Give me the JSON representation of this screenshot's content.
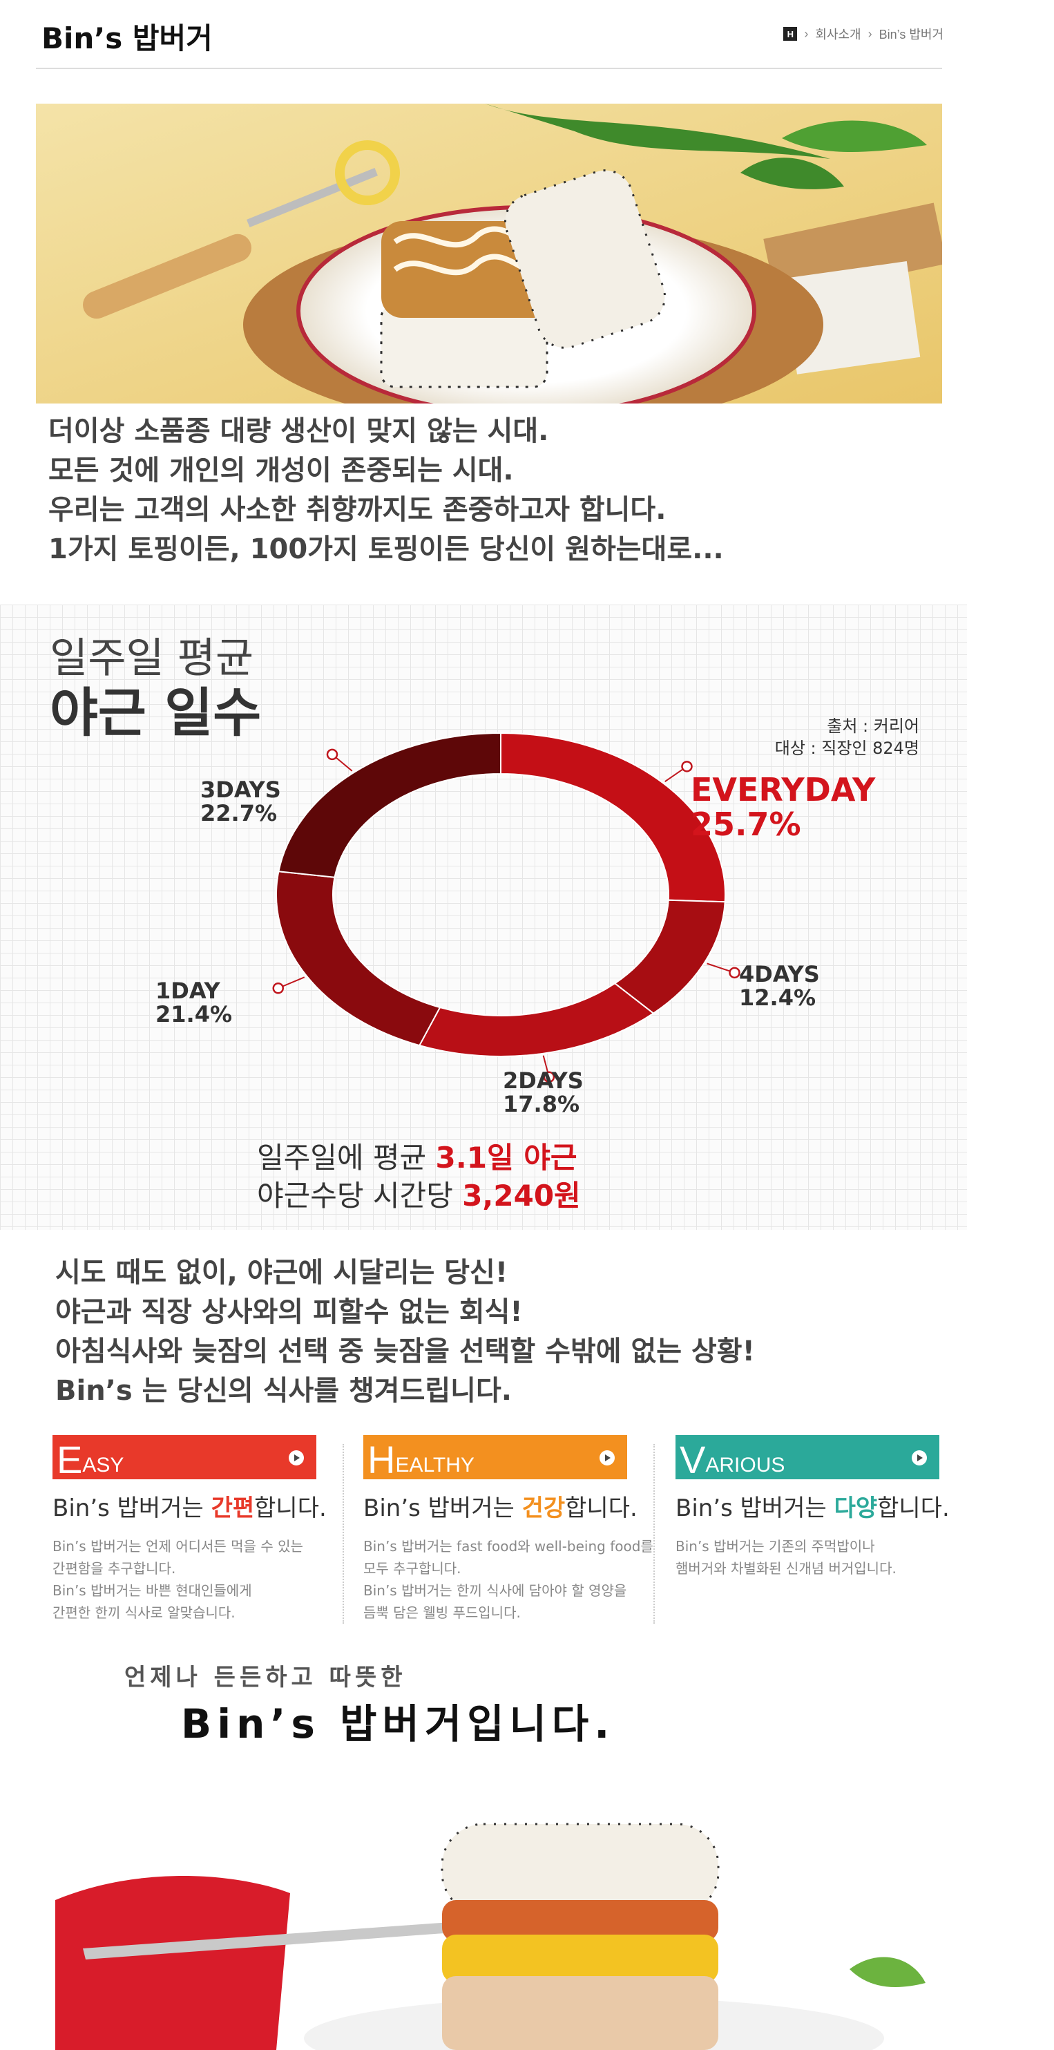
{
  "header": {
    "title": "Bin’s 밥버거",
    "breadcrumb": [
      "회사소개",
      "Bin’s 밥버거"
    ],
    "home_icon_label": "H"
  },
  "intro": {
    "lines": [
      "더이상 소품종 대량 생산이 맞지 않는 시대.",
      "모든 것에 개인의 개성이 존중되는 시대.",
      "우리는 고객의 사소한 취향까지도 존중하고자 합니다.",
      "1가지 토핑이든, 100가지 토핑이든 당신이 원하는대로..."
    ]
  },
  "infographic": {
    "title_line1": "일주일 평균",
    "title_line2": "야근 일수",
    "source_line1": "출처 : 커리어",
    "source_line2": "대상 : 직장인 824명",
    "summary_line1_prefix": "일주일에 평균 ",
    "summary_line1_highlight": "3.1일 야근",
    "summary_line2_prefix": "야근수당 시간당 ",
    "summary_line2_highlight": "3,240원"
  },
  "chart_data": {
    "type": "pie",
    "title": "일주일 평균 야근 일수",
    "categories": [
      "EVERYDAY",
      "4DAYS",
      "2DAYS",
      "1DAY",
      "3DAYS"
    ],
    "values": [
      25.7,
      12.4,
      17.8,
      21.4,
      22.7
    ],
    "value_labels": [
      "25.7%",
      "12.4%",
      "17.8%",
      "21.4%",
      "22.7%"
    ],
    "colors": [
      "#c40f16",
      "#a70d12",
      "#b80f16",
      "#8a0a0e",
      "#5e0708"
    ],
    "donut": true
  },
  "copy2": {
    "lines": [
      "시도 때도 없이, 야근에 시달리는 당신!",
      "야근과 직장 상사와의 피할수 없는 회식!",
      "아침식사와 늦잠의 선택 중 늦잠을 선택할 수밖에 없는 상황!",
      "Bin’s 는 당신의 식사를 챙겨드립니다."
    ]
  },
  "features": [
    {
      "first_letter": "E",
      "rest": "ASY",
      "color": "#e8392a",
      "head_prefix": "Bin’s 밥버거는 ",
      "head_highlight": "간편",
      "head_suffix": "합니다.",
      "highlight_color": "#e8392a",
      "desc": [
        "Bin’s 밥버거는 언제 어디서든 먹을 수 있는",
        "간편함을 추구합니다.",
        "Bin’s 밥버거는 바쁜 현대인들에게",
        "간편한 한끼 식사로 알맞습니다."
      ]
    },
    {
      "first_letter": "H",
      "rest": "EALTHY",
      "color": "#f3901f",
      "head_prefix": "Bin’s 밥버거는 ",
      "head_highlight": "건강",
      "head_suffix": "합니다.",
      "highlight_color": "#f3901f",
      "desc": [
        "Bin’s 밥버거는 fast food와 well-being food를",
        "모두 추구합니다.",
        "Bin’s 밥버거는 한끼 식사에 담아야 할 영양을",
        "듬뿍 담은 웰빙 푸드입니다."
      ]
    },
    {
      "first_letter": "V",
      "rest": "ARIOUS",
      "color": "#2ba99a",
      "head_prefix": "Bin’s 밥버거는 ",
      "head_highlight": "다양",
      "head_suffix": "합니다.",
      "highlight_color": "#2ba99a",
      "desc": [
        "Bin’s 밥버거는 기존의 주먹밥이나",
        "햄버거와 차별화된 신개념 버거입니다."
      ]
    }
  ],
  "slogan": {
    "line1": "언제나 든든하고 따뜻한",
    "line2": "Bin’s 밥버거입니다."
  }
}
